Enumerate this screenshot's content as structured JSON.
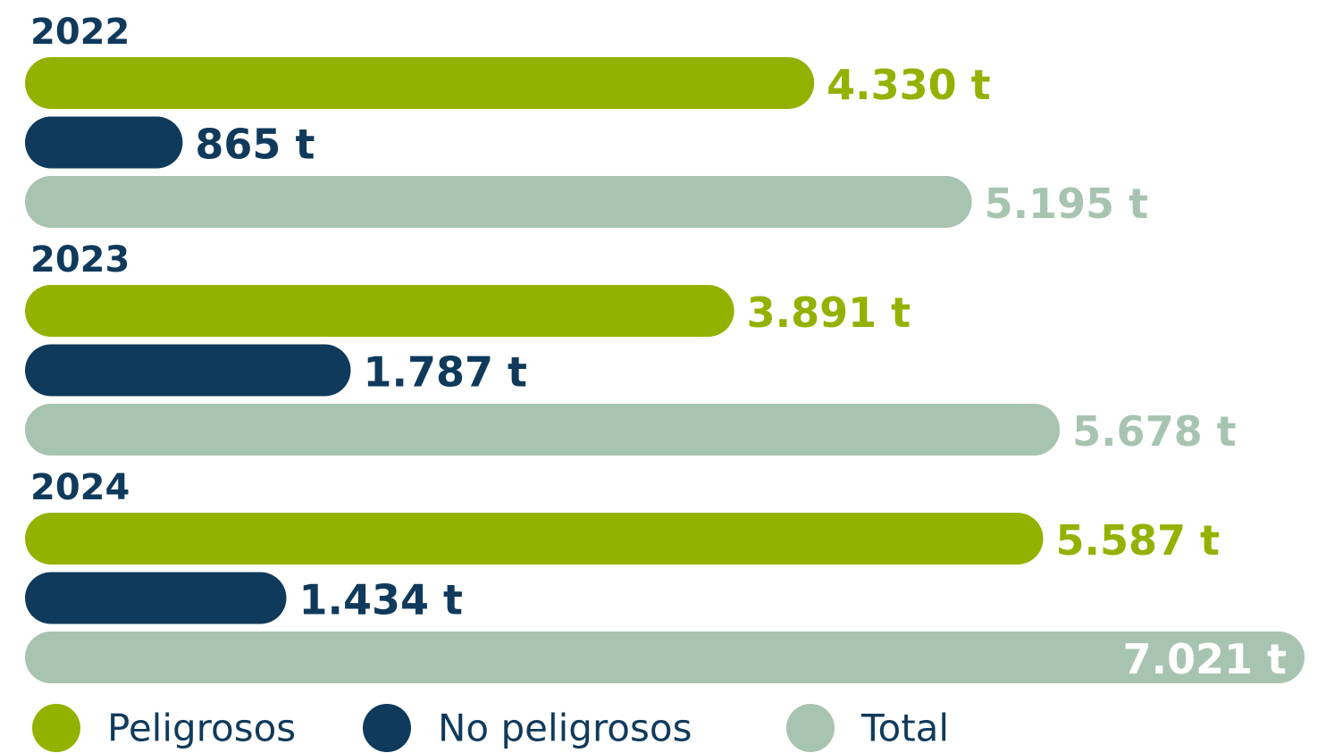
{
  "chart_data": {
    "type": "bar",
    "orientation": "horizontal",
    "categories": [
      "2022",
      "2023",
      "2024"
    ],
    "series": [
      {
        "name": "Peligrosos",
        "color": "#93b200",
        "values": [
          4330,
          3891,
          5587
        ],
        "value_labels": [
          "4.330 t",
          "3.891 t",
          "5.587 t"
        ]
      },
      {
        "name": "No peligrosos",
        "color": "#0f3a5c",
        "values": [
          865,
          1787,
          1434
        ],
        "value_labels": [
          "865 t",
          "1.787 t",
          "1.434 t"
        ]
      },
      {
        "name": "Total",
        "color": "#a7c4b0",
        "values": [
          5195,
          5678,
          7021
        ],
        "value_labels": [
          "5.195 t",
          "5.678 t",
          "7.021 t"
        ]
      }
    ],
    "legend": "bottom"
  }
}
